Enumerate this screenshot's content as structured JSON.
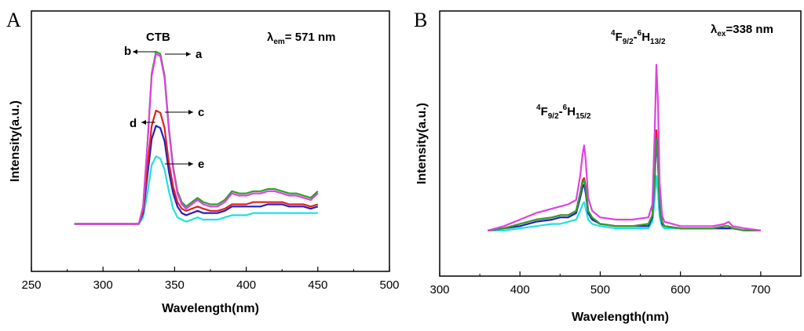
{
  "chart_data": [
    {
      "type": "line",
      "panel_label": "A",
      "xlabel": "Wavelength(nm)",
      "ylabel": "Intensity(a.u.)",
      "xlim": [
        250,
        500
      ],
      "ylim": [
        0,
        1
      ],
      "xticks": [
        250,
        300,
        350,
        400,
        450,
        500
      ],
      "xtick_labels": [
        "250",
        "300",
        "350",
        "400",
        "450",
        "500"
      ],
      "y_ticks_shown": false,
      "grid": false,
      "annotations": {
        "peak": "CTB",
        "lambda_symbol": "λ",
        "lambda_sub": "em",
        "lambda_value": "= 571 nm",
        "markers": [
          "a",
          "b",
          "c",
          "d",
          "e"
        ]
      },
      "series": [
        {
          "name": "a",
          "color": "#2ca02c",
          "x": [
            280,
            325,
            328,
            331,
            334,
            337,
            340,
            343,
            346,
            349,
            352,
            355,
            358,
            362,
            366,
            370,
            375,
            380,
            385,
            390,
            395,
            400,
            405,
            410,
            415,
            420,
            425,
            430,
            435,
            440,
            445,
            450
          ],
          "values": [
            0.16,
            0.16,
            0.24,
            0.52,
            0.85,
            0.95,
            0.94,
            0.84,
            0.6,
            0.42,
            0.31,
            0.26,
            0.24,
            0.26,
            0.28,
            0.26,
            0.25,
            0.25,
            0.27,
            0.31,
            0.3,
            0.3,
            0.31,
            0.31,
            0.32,
            0.32,
            0.31,
            0.3,
            0.3,
            0.29,
            0.28,
            0.31
          ]
        },
        {
          "name": "b",
          "color": "#e040e0",
          "x": [
            280,
            325,
            328,
            331,
            334,
            337,
            340,
            343,
            346,
            349,
            352,
            355,
            358,
            362,
            366,
            370,
            375,
            380,
            385,
            390,
            395,
            400,
            405,
            410,
            415,
            420,
            425,
            430,
            435,
            440,
            445,
            450
          ],
          "values": [
            0.16,
            0.16,
            0.24,
            0.52,
            0.84,
            0.94,
            0.93,
            0.83,
            0.59,
            0.41,
            0.3,
            0.25,
            0.23,
            0.25,
            0.27,
            0.25,
            0.24,
            0.24,
            0.26,
            0.3,
            0.29,
            0.29,
            0.3,
            0.3,
            0.31,
            0.31,
            0.3,
            0.29,
            0.29,
            0.28,
            0.27,
            0.3
          ]
        },
        {
          "name": "c",
          "color": "#e02020",
          "x": [
            280,
            325,
            328,
            331,
            334,
            337,
            340,
            343,
            346,
            349,
            352,
            355,
            358,
            362,
            366,
            370,
            375,
            380,
            385,
            390,
            395,
            400,
            405,
            410,
            415,
            420,
            425,
            430,
            435,
            440,
            445,
            450
          ],
          "values": [
            0.16,
            0.16,
            0.22,
            0.42,
            0.61,
            0.68,
            0.67,
            0.6,
            0.44,
            0.33,
            0.26,
            0.23,
            0.22,
            0.23,
            0.24,
            0.23,
            0.22,
            0.22,
            0.23,
            0.25,
            0.25,
            0.25,
            0.26,
            0.26,
            0.26,
            0.26,
            0.26,
            0.25,
            0.25,
            0.25,
            0.24,
            0.25
          ]
        },
        {
          "name": "d",
          "color": "#2020c0",
          "x": [
            280,
            325,
            328,
            331,
            334,
            337,
            340,
            343,
            346,
            349,
            352,
            355,
            358,
            362,
            366,
            370,
            375,
            380,
            385,
            390,
            395,
            400,
            405,
            410,
            415,
            420,
            425,
            430,
            435,
            440,
            445,
            450
          ],
          "values": [
            0.16,
            0.16,
            0.21,
            0.38,
            0.55,
            0.61,
            0.6,
            0.54,
            0.4,
            0.3,
            0.24,
            0.21,
            0.2,
            0.21,
            0.22,
            0.21,
            0.21,
            0.21,
            0.22,
            0.24,
            0.24,
            0.24,
            0.24,
            0.24,
            0.25,
            0.25,
            0.25,
            0.24,
            0.24,
            0.24,
            0.23,
            0.24
          ]
        },
        {
          "name": "e",
          "color": "#20e0e0",
          "x": [
            280,
            325,
            328,
            331,
            334,
            337,
            340,
            343,
            346,
            349,
            352,
            355,
            358,
            362,
            366,
            370,
            375,
            380,
            385,
            390,
            395,
            400,
            405,
            410,
            415,
            420,
            425,
            430,
            435,
            440,
            445,
            450
          ],
          "values": [
            0.16,
            0.16,
            0.19,
            0.3,
            0.43,
            0.47,
            0.46,
            0.41,
            0.31,
            0.23,
            0.19,
            0.18,
            0.17,
            0.18,
            0.19,
            0.18,
            0.18,
            0.18,
            0.19,
            0.2,
            0.2,
            0.2,
            0.21,
            0.21,
            0.21,
            0.21,
            0.21,
            0.21,
            0.21,
            0.21,
            0.21,
            0.21
          ]
        }
      ]
    },
    {
      "type": "line",
      "panel_label": "B",
      "xlabel": "Wavelength(nm)",
      "ylabel": "Intensity(a.u.)",
      "xlim": [
        300,
        750
      ],
      "ylim": [
        0,
        1
      ],
      "xticks": [
        300,
        400,
        500,
        600,
        700
      ],
      "xtick_labels": [
        "300",
        "400",
        "500",
        "600",
        "700"
      ],
      "y_ticks_shown": false,
      "grid": false,
      "annotations": {
        "lambda_symbol": "λ",
        "lambda_sub": "ex",
        "lambda_value": "=338 nm",
        "peak_1": {
          "sup1": "4",
          "base1": "F",
          "sub1": "9/2",
          "dash": "-",
          "sup2": "6",
          "base2": "H",
          "sub2": "15/2"
        },
        "peak_2": {
          "sup1": "4",
          "base1": "F",
          "sub1": "9/2",
          "dash": "-",
          "sup2": "6",
          "base2": "H",
          "sub2": "13/2"
        }
      },
      "series": [
        {
          "name": "a",
          "color": "#2ca02c",
          "x": [
            360,
            380,
            400,
            420,
            440,
            450,
            460,
            470,
            475,
            478,
            480,
            482,
            485,
            490,
            500,
            520,
            540,
            560,
            565,
            568,
            570,
            572,
            574,
            577,
            580,
            600,
            620,
            640,
            655,
            660,
            665,
            680,
            700
          ],
          "values": [
            0.13,
            0.14,
            0.16,
            0.18,
            0.19,
            0.2,
            0.2,
            0.22,
            0.3,
            0.35,
            0.36,
            0.32,
            0.22,
            0.19,
            0.16,
            0.15,
            0.15,
            0.16,
            0.2,
            0.4,
            0.55,
            0.45,
            0.25,
            0.17,
            0.15,
            0.14,
            0.14,
            0.14,
            0.15,
            0.15,
            0.14,
            0.13,
            0.13
          ]
        },
        {
          "name": "b",
          "color": "#e040e0",
          "x": [
            360,
            380,
            400,
            420,
            440,
            450,
            460,
            470,
            475,
            478,
            480,
            482,
            485,
            490,
            500,
            520,
            540,
            560,
            565,
            568,
            570,
            572,
            574,
            577,
            580,
            600,
            620,
            640,
            655,
            660,
            665,
            680,
            700
          ],
          "values": [
            0.13,
            0.15,
            0.18,
            0.21,
            0.23,
            0.24,
            0.25,
            0.27,
            0.38,
            0.48,
            0.52,
            0.45,
            0.28,
            0.22,
            0.19,
            0.18,
            0.18,
            0.19,
            0.25,
            0.6,
            0.89,
            0.72,
            0.35,
            0.2,
            0.17,
            0.15,
            0.15,
            0.15,
            0.16,
            0.17,
            0.15,
            0.14,
            0.13
          ]
        },
        {
          "name": "c",
          "color": "#e02020",
          "x": [
            360,
            380,
            400,
            420,
            440,
            450,
            460,
            470,
            475,
            478,
            480,
            482,
            485,
            490,
            500,
            520,
            540,
            560,
            565,
            568,
            570,
            572,
            574,
            577,
            580,
            600,
            620,
            640,
            655,
            660,
            665,
            680,
            700
          ],
          "values": [
            0.13,
            0.14,
            0.16,
            0.18,
            0.19,
            0.2,
            0.2,
            0.22,
            0.3,
            0.36,
            0.37,
            0.33,
            0.22,
            0.19,
            0.16,
            0.15,
            0.15,
            0.16,
            0.2,
            0.42,
            0.59,
            0.48,
            0.26,
            0.17,
            0.15,
            0.14,
            0.14,
            0.14,
            0.15,
            0.15,
            0.14,
            0.13,
            0.13
          ]
        },
        {
          "name": "d",
          "color": "#2020c0",
          "x": [
            360,
            380,
            400,
            420,
            440,
            450,
            460,
            470,
            475,
            478,
            480,
            482,
            485,
            490,
            500,
            520,
            540,
            560,
            565,
            568,
            570,
            572,
            574,
            577,
            580,
            600,
            620,
            640,
            655,
            660,
            665,
            680,
            700
          ],
          "values": [
            0.13,
            0.14,
            0.15,
            0.17,
            0.18,
            0.19,
            0.19,
            0.21,
            0.28,
            0.33,
            0.34,
            0.3,
            0.21,
            0.18,
            0.16,
            0.15,
            0.15,
            0.15,
            0.19,
            0.38,
            0.55,
            0.44,
            0.24,
            0.16,
            0.15,
            0.14,
            0.14,
            0.14,
            0.14,
            0.14,
            0.14,
            0.13,
            0.13
          ]
        },
        {
          "name": "e",
          "color": "#20e0e0",
          "x": [
            360,
            380,
            400,
            420,
            440,
            450,
            460,
            470,
            475,
            478,
            480,
            482,
            485,
            490,
            500,
            520,
            540,
            560,
            565,
            568,
            570,
            572,
            574,
            577,
            580,
            600,
            620,
            640,
            655,
            660,
            665,
            680,
            700
          ],
          "values": [
            0.13,
            0.13,
            0.14,
            0.15,
            0.16,
            0.16,
            0.17,
            0.18,
            0.22,
            0.25,
            0.26,
            0.23,
            0.18,
            0.16,
            0.15,
            0.14,
            0.14,
            0.14,
            0.17,
            0.28,
            0.38,
            0.31,
            0.19,
            0.15,
            0.14,
            0.14,
            0.14,
            0.14,
            0.14,
            0.14,
            0.14,
            0.13,
            0.13
          ]
        }
      ]
    }
  ]
}
